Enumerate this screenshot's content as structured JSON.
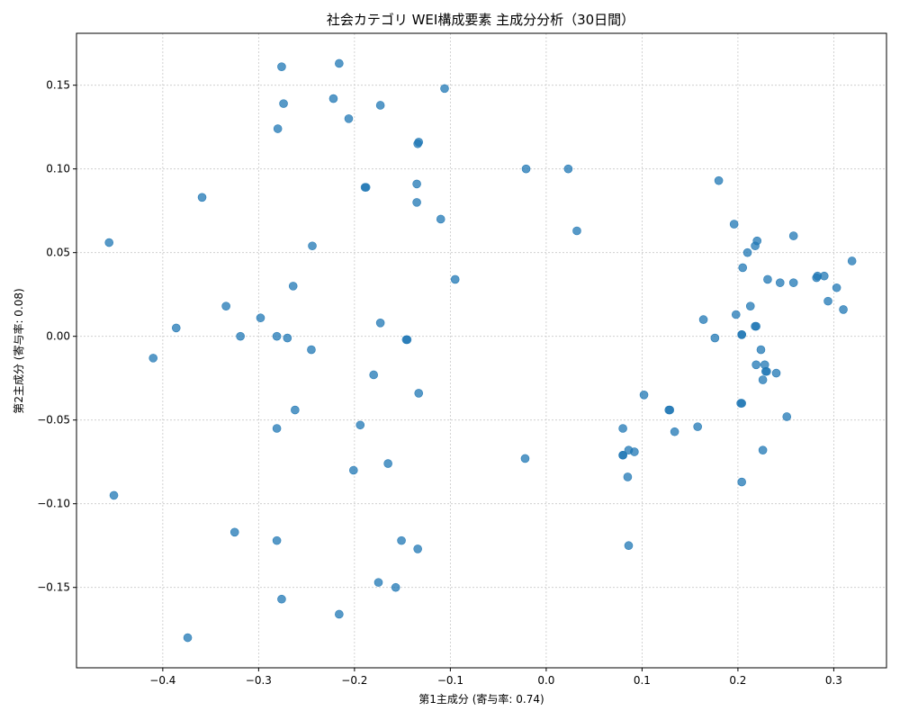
{
  "chart_data": {
    "type": "scatter",
    "title": "社会カテゴリ WEI構成要素 主成分分析（30日間）",
    "xlabel": "第1主成分 (寄与率: 0.74)",
    "ylabel": "第2主成分 (寄与率: 0.08)",
    "xlim": [
      -0.49,
      0.355
    ],
    "ylim": [
      -0.198,
      0.181
    ],
    "xticks": [
      -0.4,
      -0.3,
      -0.2,
      -0.1,
      0.0,
      0.1,
      0.2,
      0.3
    ],
    "xtick_labels": [
      "−0.4",
      "−0.3",
      "−0.2",
      "−0.1",
      "0.0",
      "0.1",
      "0.2",
      "0.3"
    ],
    "yticks": [
      -0.15,
      -0.1,
      -0.05,
      0.0,
      0.05,
      0.1,
      0.15
    ],
    "ytick_labels": [
      "−0.15",
      "−0.10",
      "−0.05",
      "0.00",
      "0.05",
      "0.10",
      "0.15"
    ],
    "grid": true,
    "marker_color": "#1f77b4",
    "points": [
      [
        -0.276,
        0.161
      ],
      [
        -0.216,
        0.163
      ],
      [
        -0.274,
        0.139
      ],
      [
        -0.222,
        0.142
      ],
      [
        -0.173,
        0.138
      ],
      [
        -0.206,
        0.13
      ],
      [
        -0.106,
        0.148
      ],
      [
        -0.28,
        0.124
      ],
      [
        -0.133,
        0.116
      ],
      [
        -0.134,
        0.115
      ],
      [
        -0.021,
        0.1
      ],
      [
        0.023,
        0.1
      ],
      [
        0.18,
        0.093
      ],
      [
        -0.359,
        0.083
      ],
      [
        -0.189,
        0.089
      ],
      [
        -0.188,
        0.089
      ],
      [
        -0.135,
        0.091
      ],
      [
        -0.135,
        0.08
      ],
      [
        -0.11,
        0.07
      ],
      [
        0.032,
        0.063
      ],
      [
        0.196,
        0.067
      ],
      [
        -0.456,
        0.056
      ],
      [
        -0.244,
        0.054
      ],
      [
        0.258,
        0.06
      ],
      [
        0.22,
        0.057
      ],
      [
        0.218,
        0.054
      ],
      [
        0.21,
        0.05
      ],
      [
        -0.095,
        0.034
      ],
      [
        0.319,
        0.045
      ],
      [
        0.205,
        0.041
      ],
      [
        0.282,
        0.035
      ],
      [
        0.29,
        0.036
      ],
      [
        0.283,
        0.036
      ],
      [
        0.231,
        0.034
      ],
      [
        0.244,
        0.032
      ],
      [
        0.258,
        0.032
      ],
      [
        -0.264,
        0.03
      ],
      [
        0.303,
        0.029
      ],
      [
        0.294,
        0.021
      ],
      [
        -0.334,
        0.018
      ],
      [
        0.213,
        0.018
      ],
      [
        0.31,
        0.016
      ],
      [
        -0.298,
        0.011
      ],
      [
        0.198,
        0.013
      ],
      [
        0.164,
        0.01
      ],
      [
        -0.173,
        0.008
      ],
      [
        0.219,
        0.006
      ],
      [
        0.218,
        0.006
      ],
      [
        -0.386,
        0.005
      ],
      [
        -0.319,
        0.0
      ],
      [
        -0.281,
        0.0
      ],
      [
        -0.27,
        -0.001
      ],
      [
        -0.145,
        -0.002
      ],
      [
        -0.146,
        -0.002
      ],
      [
        0.176,
        -0.001
      ],
      [
        0.204,
        0.001
      ],
      [
        0.204,
        0.001
      ],
      [
        -0.245,
        -0.008
      ],
      [
        0.224,
        -0.008
      ],
      [
        -0.41,
        -0.013
      ],
      [
        0.219,
        -0.017
      ],
      [
        0.228,
        -0.017
      ],
      [
        0.23,
        -0.021
      ],
      [
        0.229,
        -0.021
      ],
      [
        0.24,
        -0.022
      ],
      [
        -0.18,
        -0.023
      ],
      [
        0.226,
        -0.026
      ],
      [
        -0.133,
        -0.034
      ],
      [
        0.102,
        -0.035
      ],
      [
        0.204,
        -0.04
      ],
      [
        0.203,
        -0.04
      ],
      [
        -0.262,
        -0.044
      ],
      [
        0.129,
        -0.044
      ],
      [
        0.128,
        -0.044
      ],
      [
        0.251,
        -0.048
      ],
      [
        -0.194,
        -0.053
      ],
      [
        0.158,
        -0.054
      ],
      [
        0.08,
        -0.055
      ],
      [
        -0.281,
        -0.055
      ],
      [
        0.134,
        -0.057
      ],
      [
        0.086,
        -0.068
      ],
      [
        0.092,
        -0.069
      ],
      [
        0.226,
        -0.068
      ],
      [
        0.08,
        -0.071
      ],
      [
        0.08,
        -0.071
      ],
      [
        -0.022,
        -0.073
      ],
      [
        -0.165,
        -0.076
      ],
      [
        -0.201,
        -0.08
      ],
      [
        0.085,
        -0.084
      ],
      [
        0.204,
        -0.087
      ],
      [
        -0.451,
        -0.095
      ],
      [
        -0.325,
        -0.117
      ],
      [
        -0.281,
        -0.122
      ],
      [
        -0.151,
        -0.122
      ],
      [
        -0.134,
        -0.127
      ],
      [
        0.086,
        -0.125
      ],
      [
        -0.175,
        -0.147
      ],
      [
        -0.157,
        -0.15
      ],
      [
        -0.276,
        -0.157
      ],
      [
        -0.216,
        -0.166
      ],
      [
        -0.374,
        -0.18
      ]
    ]
  }
}
